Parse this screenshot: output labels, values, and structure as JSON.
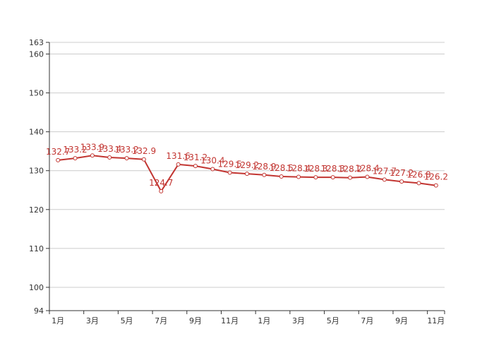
{
  "chart_data": {
    "type": "line",
    "title": "",
    "xlabel": "",
    "ylabel": "",
    "x": [
      "1月",
      "2月",
      "3月",
      "4月",
      "5月",
      "6月",
      "7月",
      "8月",
      "9月",
      "10月",
      "11月",
      "12月",
      "1月",
      "2月",
      "3月",
      "4月",
      "5月",
      "6月",
      "7月",
      "8月",
      "9月",
      "10月",
      "11月"
    ],
    "x_tick_labels": [
      "1月",
      "3月",
      "5月",
      "7月",
      "9月",
      "11月",
      "1月",
      "3月",
      "5月",
      "7月",
      "9月",
      "11月"
    ],
    "series": [
      {
        "values": [
          132.7,
          133.2,
          133.9,
          133.4,
          133.2,
          132.9,
          124.7,
          131.6,
          131.2,
          130.4,
          129.5,
          129.2,
          128.9,
          128.5,
          128.4,
          128.3,
          128.3,
          128.2,
          128.4,
          127.7,
          127.2,
          126.8,
          126.2
        ],
        "labels": [
          "132.7",
          "133.2",
          "133.9",
          "133.4",
          "133.2",
          "132.9",
          "124.7",
          "131.6",
          "131.2",
          "130.4",
          "129.5",
          "129.2",
          "128.9",
          "128.5",
          "128.4",
          "128.3",
          "128.3",
          "128.2",
          "128.4",
          "127.7",
          "127.2",
          "126.8",
          "126.2"
        ]
      }
    ],
    "y_ticks": [
      "94",
      "100",
      "110",
      "120",
      "130",
      "140",
      "150",
      "160",
      "163"
    ],
    "ylim": [
      94,
      163
    ],
    "grid": true,
    "colors": {
      "line": "#c23531",
      "grid": "#cccccc",
      "axis": "#333333",
      "marker_fill": "#ffffff"
    }
  }
}
